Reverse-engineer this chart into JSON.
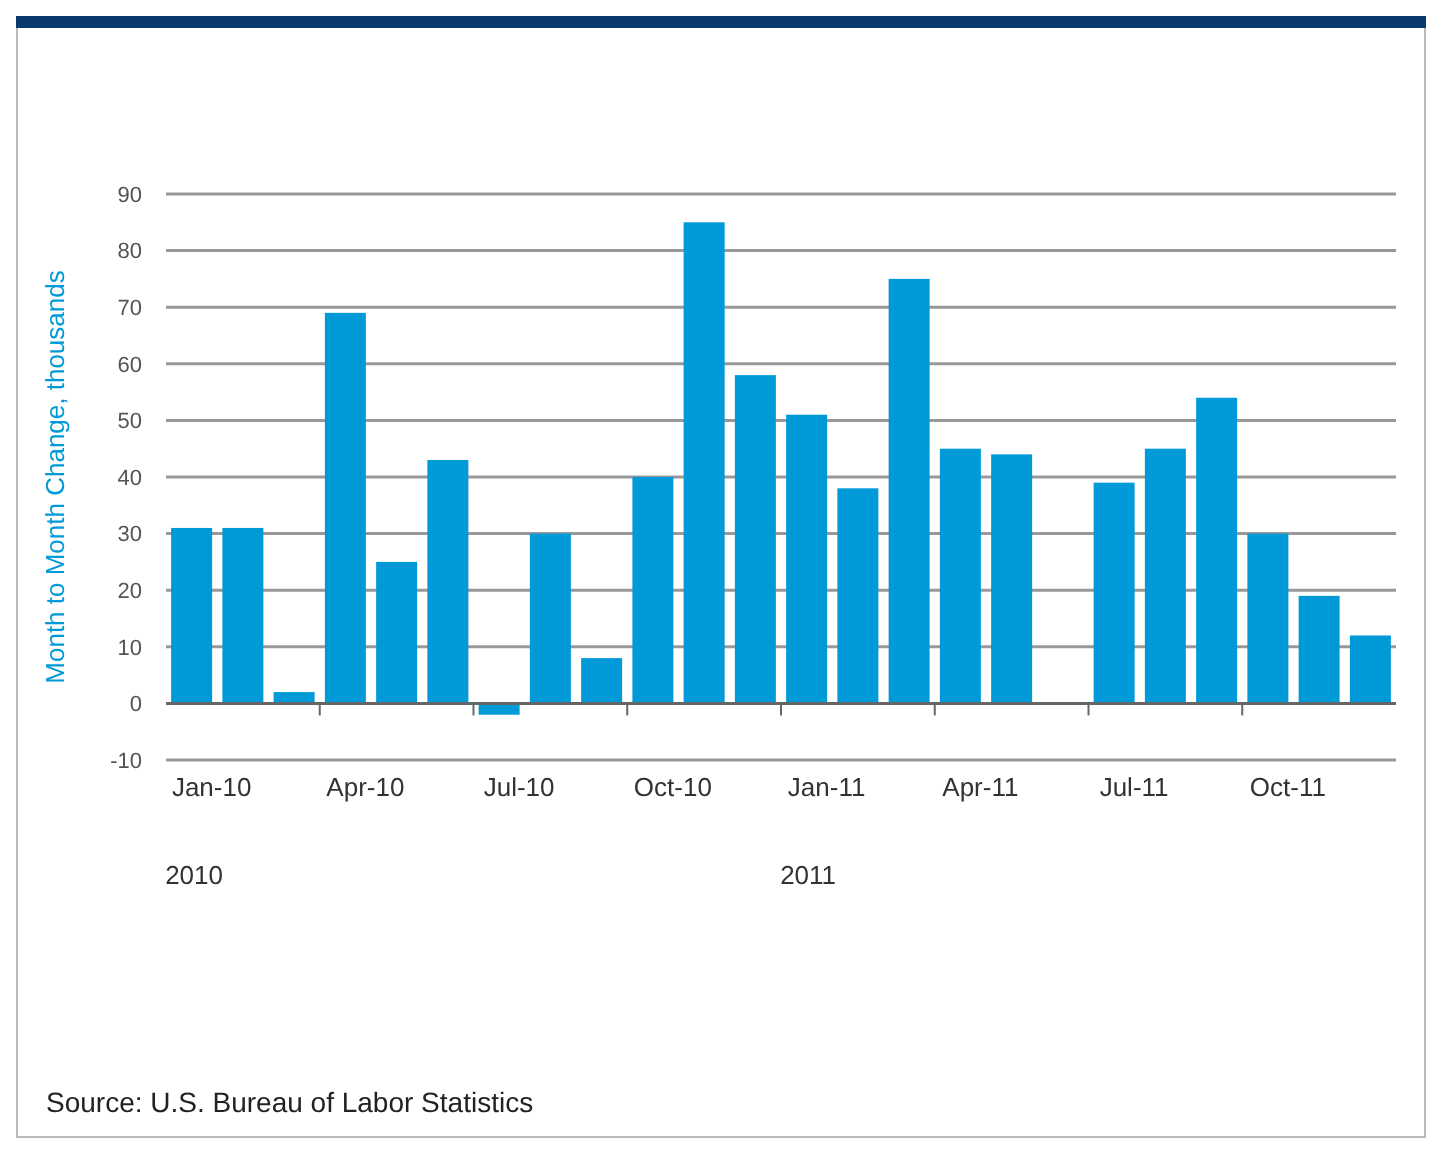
{
  "chart_data": {
    "type": "bar",
    "ylabel": "Month to Month Change, thousands",
    "categories": [
      "Jan-10",
      null,
      null,
      "Apr-10",
      null,
      null,
      "Jul-10",
      null,
      null,
      "Oct-10",
      null,
      null,
      "Jan-11",
      null,
      null,
      "Apr-11",
      null,
      null,
      "Jul-11",
      null,
      null,
      "Oct-11",
      null,
      null
    ],
    "values": [
      31,
      31,
      2,
      69,
      25,
      43,
      -2,
      30,
      8,
      40,
      85,
      58,
      51,
      38,
      75,
      45,
      44,
      null,
      39,
      45,
      54,
      30,
      19,
      12
    ],
    "color": "#009ad8",
    "ylim": [
      -10,
      90
    ],
    "yticks": [
      -10,
      0,
      10,
      20,
      30,
      40,
      50,
      60,
      70,
      80,
      90
    ],
    "grid": "y",
    "annotations": [
      "2010",
      "2011",
      "Source: U.S. Bureau of Labor Statistics"
    ]
  }
}
